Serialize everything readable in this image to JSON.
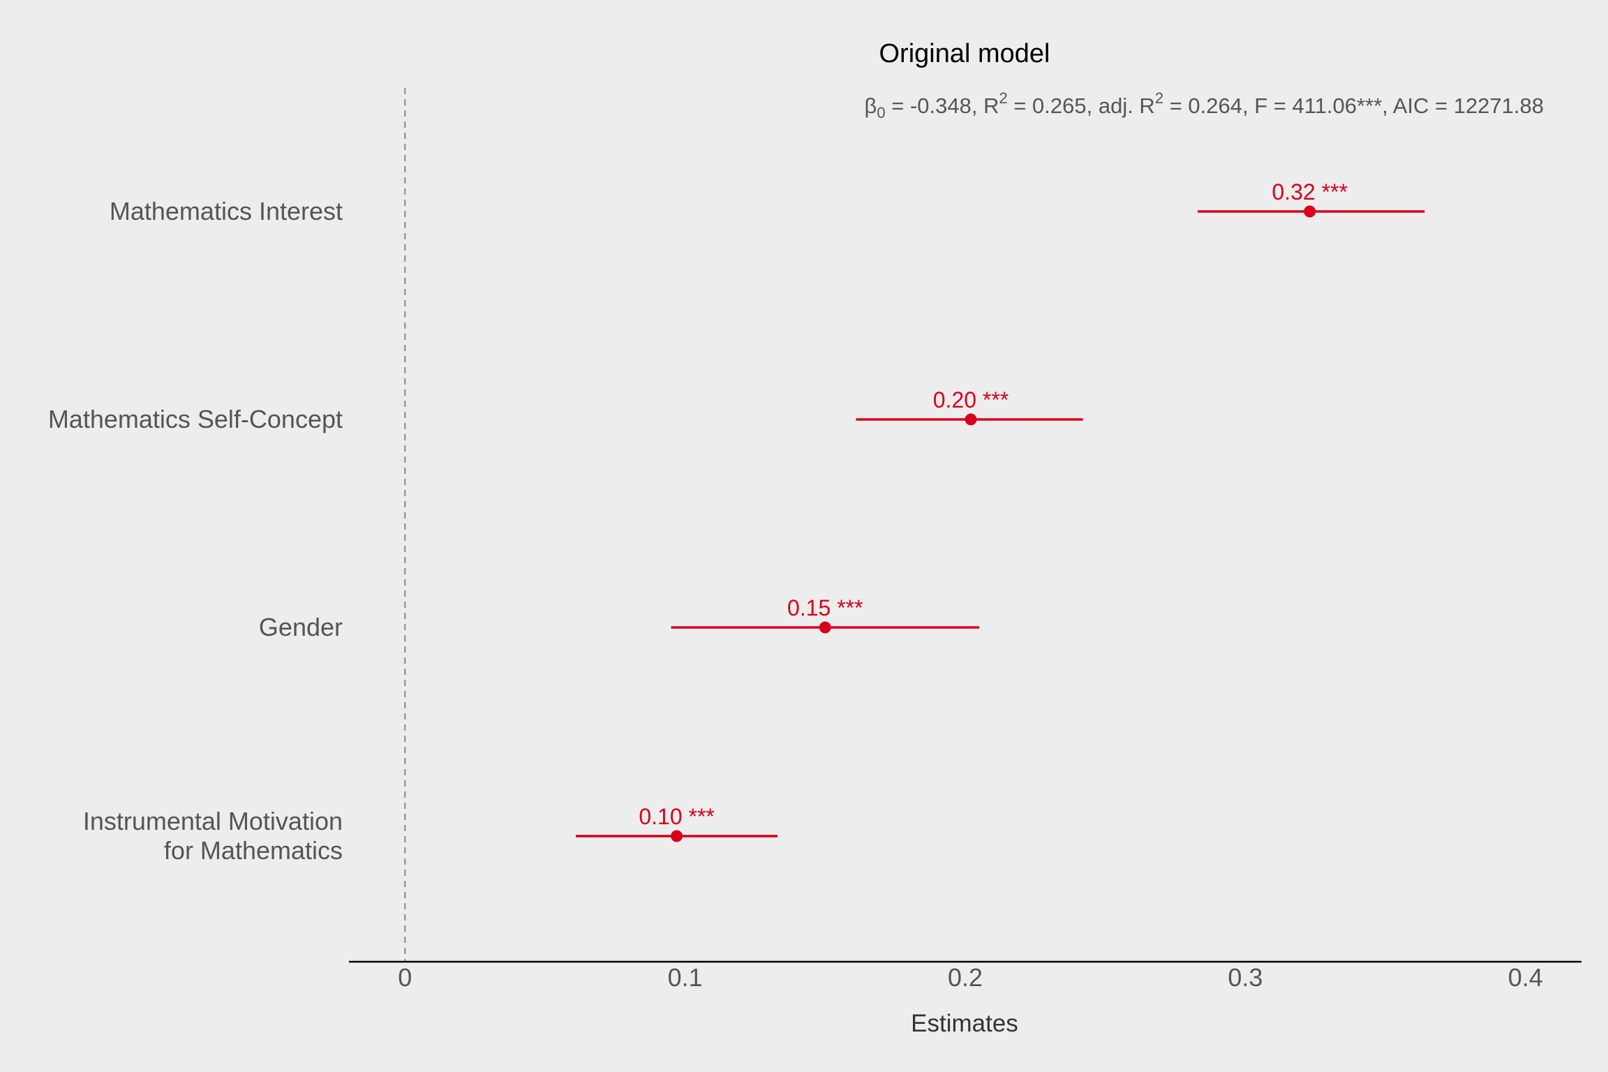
{
  "chart_data": {
    "type": "forest",
    "title": "Original model",
    "subtitle": {
      "beta_symbol": "β",
      "beta_sub": "0",
      "beta_value": " = -0.348, R",
      "r2_sup": "2",
      "r2_value": " = 0.265, adj. R",
      "adjr2_sup": "2",
      "rest": " = 0.264, F = 411.06***, AIC = 12271.88"
    },
    "xlabel": "Estimates",
    "xlim": [
      -0.02,
      0.42
    ],
    "xticks": [
      "0",
      "0.1",
      "0.2",
      "0.3",
      "0.4"
    ],
    "xtick_values": [
      0,
      0.1,
      0.2,
      0.3,
      0.4
    ],
    "reference_line": 0,
    "point_color": "#d7001d",
    "grid": false,
    "terms": [
      {
        "label_lines": [
          "Mathematics Interest"
        ],
        "estimate": 0.323,
        "ci_low": 0.283,
        "ci_high": 0.364,
        "label": "0.32 ***"
      },
      {
        "label_lines": [
          "Mathematics Self-Concept"
        ],
        "estimate": 0.202,
        "ci_low": 0.161,
        "ci_high": 0.242,
        "label": "0.20 ***"
      },
      {
        "label_lines": [
          "Gender"
        ],
        "estimate": 0.15,
        "ci_low": 0.095,
        "ci_high": 0.205,
        "label": "0.15 ***"
      },
      {
        "label_lines": [
          "Instrumental Motivation",
          "for Mathematics"
        ],
        "estimate": 0.097,
        "ci_low": 0.061,
        "ci_high": 0.133,
        "label": "0.10 ***"
      }
    ]
  }
}
